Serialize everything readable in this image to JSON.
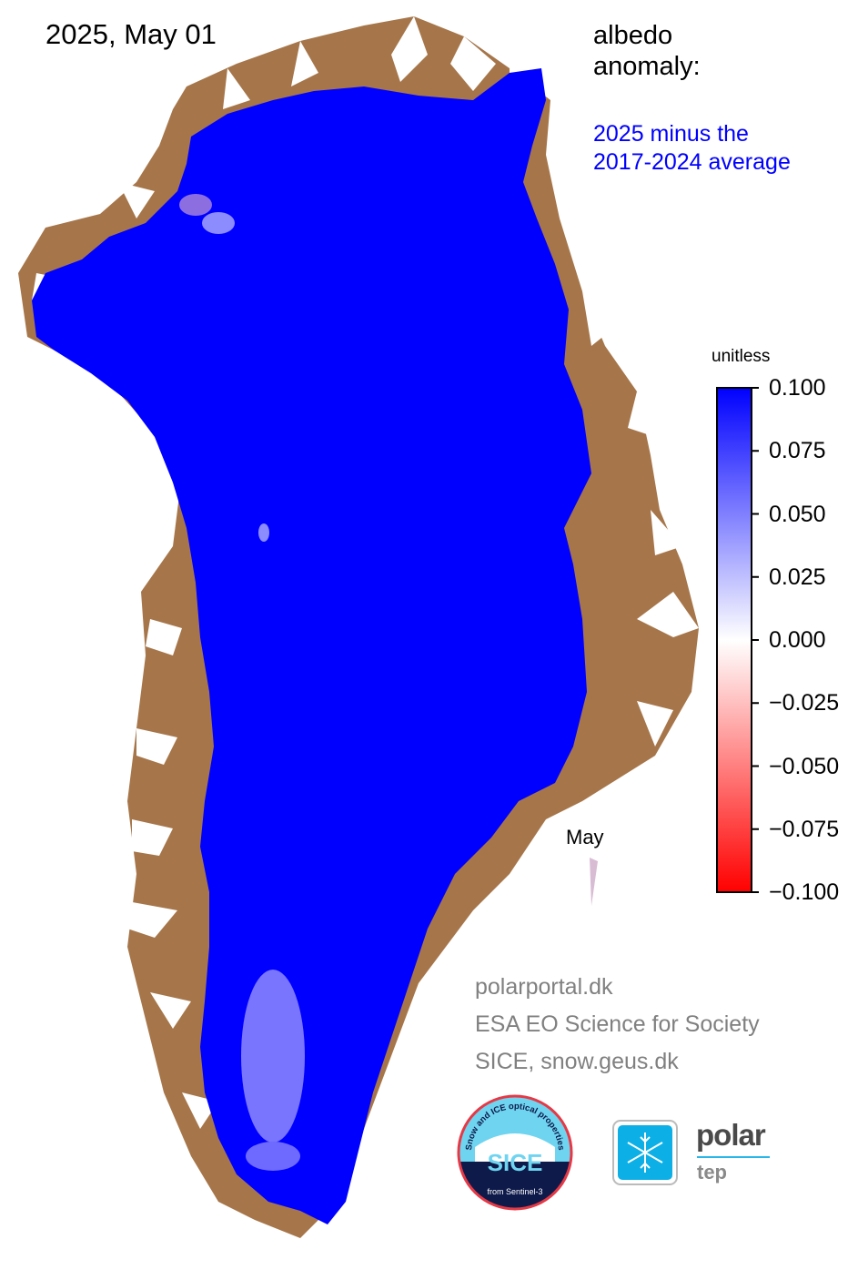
{
  "map": {
    "date": "2025, May 01",
    "title_line1": "albedo",
    "title_line2": "anomaly:",
    "desc_line1": "2025 minus the",
    "desc_line2": "2017-2024 average",
    "inset_label": "May"
  },
  "colorbar": {
    "unit": "unitless",
    "min": -0.1,
    "max": 0.1,
    "colors": {
      "min": "#ff0000",
      "mid": "#ffffff",
      "max": "#0000ff"
    },
    "ticks": [
      "0.100",
      "0.075",
      "0.050",
      "0.025",
      "0.000",
      "−0.025",
      "−0.050",
      "−0.075",
      "−0.100"
    ]
  },
  "colors": {
    "ice_anomaly": "#0000ff",
    "land": "#a6764a",
    "ocean": "#ffffff"
  },
  "credits": {
    "line1": "polarportal.dk",
    "line2": "ESA EO Science for Society",
    "line3": "SICE, snow.geus.dk"
  },
  "logos": {
    "sice": {
      "arc_text": "Snow and ICE optical properties",
      "name": "SICE",
      "bottom_text": "from Sentinel-3"
    },
    "polartep": {
      "word1": "polar",
      "word2": "tep",
      "icon": "snowflake-icon"
    }
  }
}
